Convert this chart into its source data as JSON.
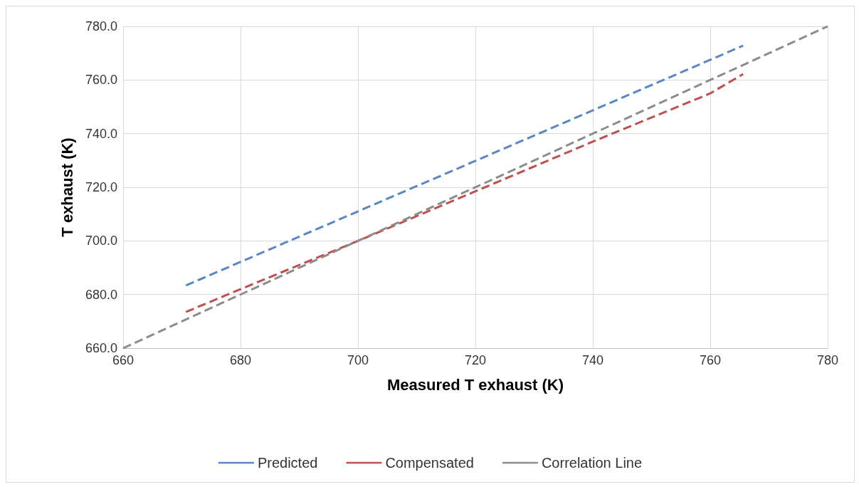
{
  "chart_data": {
    "type": "line",
    "xlabel": "Measured T exhaust (K)",
    "ylabel": "T exhaust (K)",
    "xlim": [
      660,
      780
    ],
    "xticks": [
      660,
      680,
      700,
      720,
      740,
      760,
      780
    ],
    "ylim": [
      660,
      780
    ],
    "yticks": [
      {
        "value": 660,
        "label": "660.0"
      },
      {
        "value": 680,
        "label": "680.0"
      },
      {
        "value": 700,
        "label": "700.0"
      },
      {
        "value": 720,
        "label": "720.0"
      },
      {
        "value": 740,
        "label": "740.0"
      },
      {
        "value": 760,
        "label": "760.0"
      },
      {
        "value": 780,
        "label": "780.0"
      }
    ],
    "grid": true,
    "legend": "bottom",
    "marker": "none",
    "line_style": "dashed",
    "series": [
      {
        "name": "Predicted",
        "color": "#5b86c5",
        "x": [
          670.7,
          765.6
        ],
        "values": [
          683.4,
          772.8
        ]
      },
      {
        "name": "Compensated",
        "color": "#c0504d",
        "x": [
          670.7,
          680,
          700,
          720,
          740,
          760,
          765.6
        ],
        "values": [
          673.5,
          682,
          700,
          718.5,
          737,
          755,
          762.2
        ]
      },
      {
        "name": "Correlation Line",
        "color": "#8c8c8c",
        "x": [
          660,
          780
        ],
        "values": [
          660,
          780
        ]
      }
    ]
  }
}
